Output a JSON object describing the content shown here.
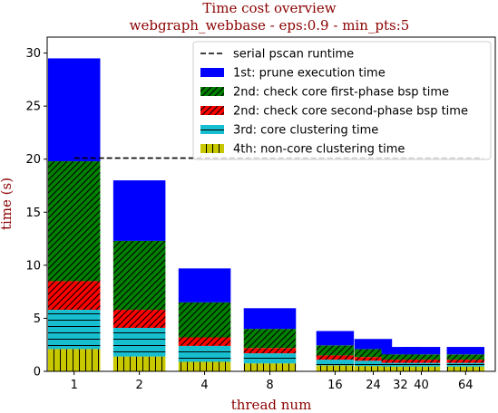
{
  "chart_data": {
    "type": "bar",
    "stacked": true,
    "title": "Time cost overview",
    "subtitle": "webgraph_webbase - eps:0.9 - min_pts:5",
    "xlabel": "thread num",
    "ylabel": "time (s)",
    "x_scale": "log2",
    "x": [
      1,
      2,
      4,
      8,
      16,
      24,
      32,
      40,
      64
    ],
    "x_ticks": [
      1,
      2,
      4,
      8,
      16,
      24,
      32,
      40,
      64
    ],
    "y_ticks": [
      0,
      5,
      10,
      15,
      20,
      25,
      30
    ],
    "ylim": [
      0,
      31.5
    ],
    "series": [
      {
        "name": "4th: non-core clustering time",
        "color": "#c8c800",
        "hatch": "vertical",
        "values": [
          2.1,
          1.4,
          0.9,
          0.75,
          0.55,
          0.5,
          0.45,
          0.45,
          0.45
        ]
      },
      {
        "name": "3rd: core clustering time",
        "color": "#17becf",
        "hatch": "horizontal",
        "values": [
          3.7,
          2.7,
          1.5,
          0.95,
          0.55,
          0.5,
          0.35,
          0.35,
          0.35
        ]
      },
      {
        "name": "2nd: check core second-phase bsp time",
        "color": "#ff0000",
        "hatch": "diagonal",
        "values": [
          2.7,
          1.7,
          0.8,
          0.5,
          0.4,
          0.35,
          0.3,
          0.3,
          0.3
        ]
      },
      {
        "name": "2nd: check core first-phase bsp time",
        "color": "#008000",
        "hatch": "diagonal",
        "values": [
          11.3,
          6.5,
          3.3,
          1.8,
          0.95,
          0.75,
          0.5,
          0.5,
          0.5
        ]
      },
      {
        "name": "1st: prune execution time",
        "color": "#0000ff",
        "hatch": "none",
        "values": [
          9.7,
          5.7,
          3.2,
          1.95,
          1.35,
          0.95,
          0.7,
          0.7,
          0.7
        ]
      }
    ],
    "reference_line": {
      "name": "serial pscan runtime",
      "y": 20.1,
      "style": "dashed",
      "color": "#000000"
    },
    "legend_placement": "top-right",
    "legend_order": [
      "serial pscan runtime",
      "1st: prune execution time",
      "2nd: check core first-phase bsp time",
      "2nd: check core second-phase bsp time",
      "3rd: core clustering time",
      "4th: non-core clustering time"
    ],
    "grid": false
  }
}
